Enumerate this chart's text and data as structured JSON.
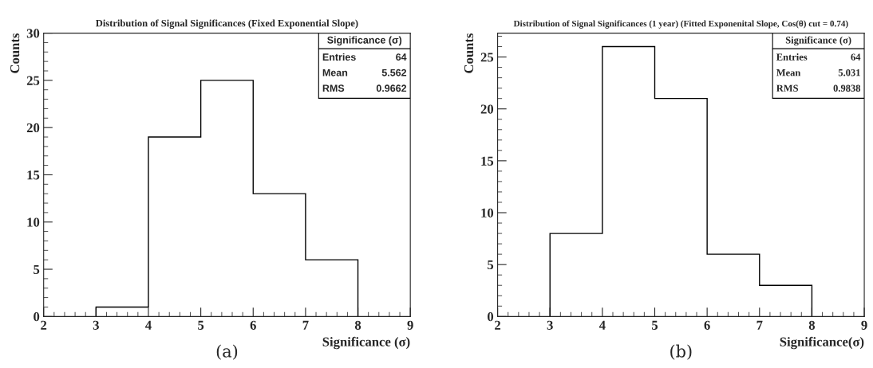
{
  "chart_data": [
    {
      "type": "histogram",
      "title": "Distribution of Signal Significances (Fixed Exponential Slope)",
      "xlabel": "Significance (σ)",
      "ylabel": "Counts",
      "bins": [
        3,
        4,
        5,
        6,
        7,
        8
      ],
      "values": [
        1,
        19,
        25,
        13,
        6
      ],
      "color": "#000000",
      "xlim": [
        2,
        9
      ],
      "xticks": [
        2,
        3,
        4,
        5,
        6,
        7,
        8,
        9
      ],
      "ylim": [
        0,
        30
      ],
      "yticks": [
        0,
        5,
        10,
        15,
        20,
        25,
        30
      ],
      "grid": false,
      "legend": false,
      "annotations": [
        "Significance (σ)",
        "Entries",
        "64",
        "Mean",
        "5.562",
        "RMS",
        "0.9662",
        "(a)"
      ]
    },
    {
      "type": "histogram",
      "title": "Distribution of Signal Significances (1 year) (Fitted Exponenital Slope, Cos(θ) cut = 0.74)",
      "xlabel": "Significance(σ)",
      "ylabel": "Counts",
      "bins": [
        3,
        4,
        5,
        6,
        7,
        8
      ],
      "values": [
        8,
        26,
        21,
        6,
        3
      ],
      "color": "#000000",
      "xlim": [
        2,
        9
      ],
      "xticks": [
        2,
        3,
        4,
        5,
        6,
        7,
        8,
        9
      ],
      "ylim": [
        0,
        27.3
      ],
      "yticks": [
        0,
        5,
        10,
        15,
        20,
        25
      ],
      "grid": false,
      "legend": false,
      "annotations": [
        "Significance (σ)",
        "Entries",
        "64",
        "Mean",
        "5.031",
        "RMS",
        "0.9838",
        "(b)"
      ]
    }
  ]
}
